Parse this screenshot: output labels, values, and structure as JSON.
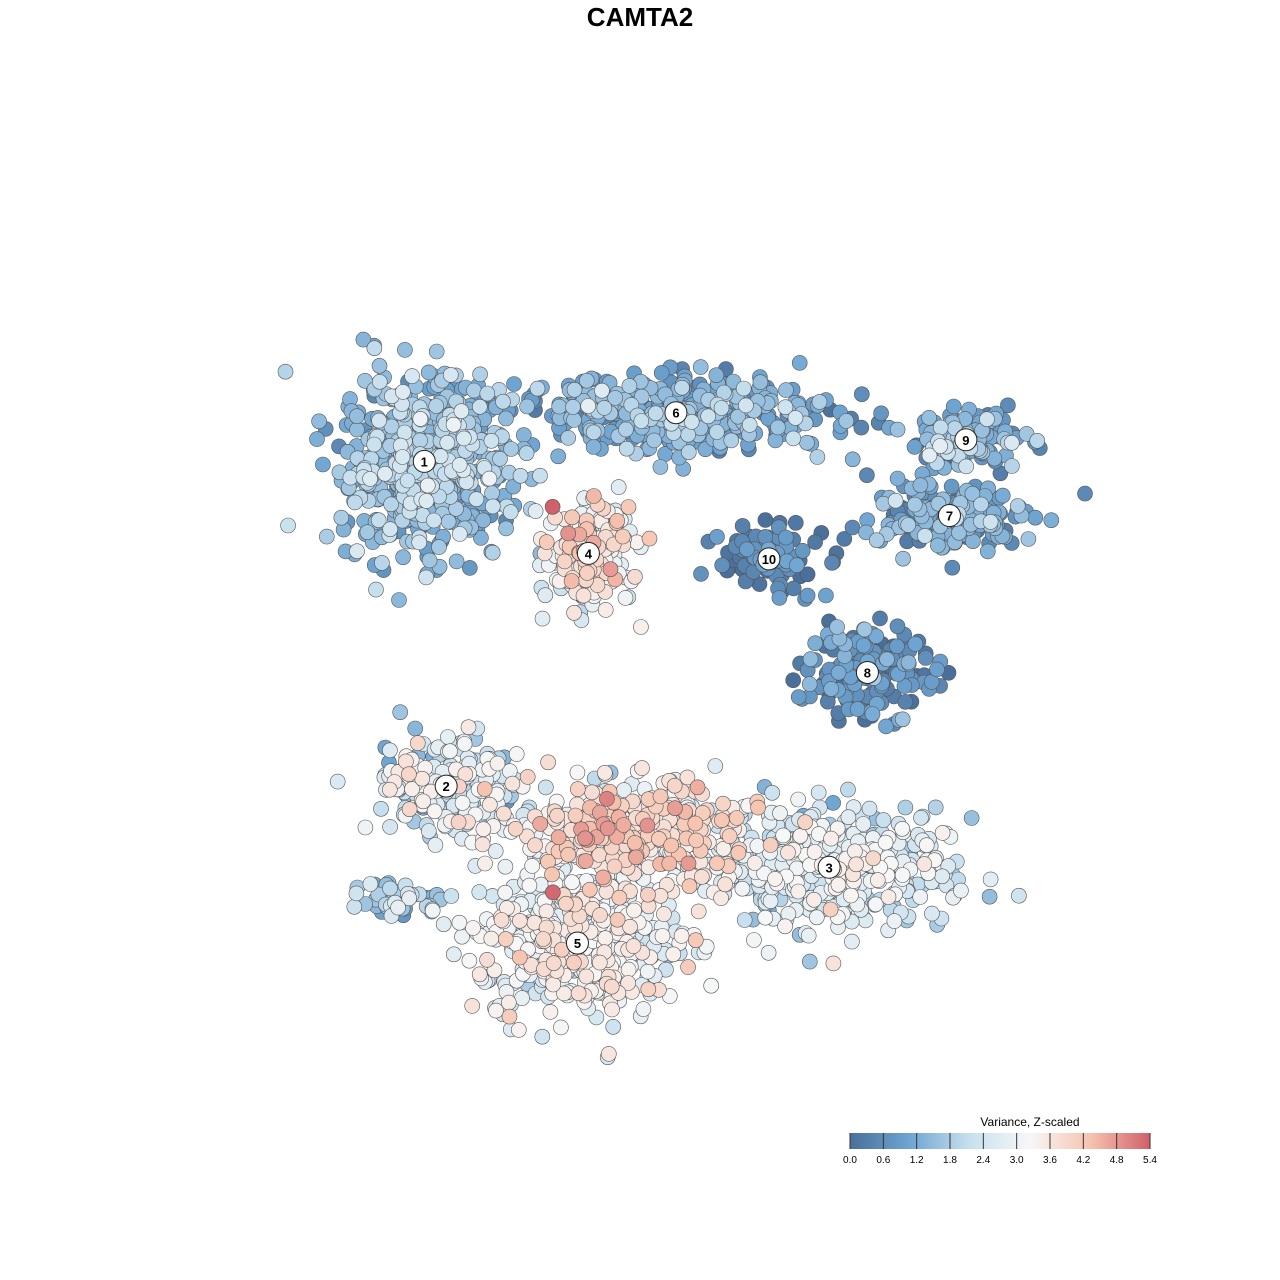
{
  "chart_data": {
    "type": "scatter",
    "title": "CAMTA2",
    "xlabel": "",
    "ylabel": "",
    "grid": false,
    "legend_placement": "bottom-right",
    "colorbar": {
      "title": "Variance, Z-scaled",
      "range": [
        0,
        5.4
      ],
      "ticks": [
        "0.0",
        "0.6",
        "1.2",
        "1.8",
        "2.4",
        "3.0",
        "3.6",
        "4.2",
        "4.8",
        "5.4"
      ],
      "stops": [
        "#4a6f9a",
        "#6fa5d2",
        "#c8e0ee",
        "#f7f7f7",
        "#f6c4b0",
        "#d0606a"
      ]
    },
    "clusters": [
      {
        "label": "1",
        "x": -4.4,
        "y": 3.3,
        "spread_x": 1.0,
        "spread_y": 1.05,
        "mean_value": 1.5,
        "sd_value": 0.5,
        "count": 650
      },
      {
        "label": "6",
        "x": 0.2,
        "y": 4.2,
        "spread_x": 1.9,
        "spread_y": 0.45,
        "mean_value": 1.2,
        "sd_value": 0.45,
        "count": 420
      },
      {
        "label": "9",
        "x": 5.5,
        "y": 3.7,
        "spread_x": 0.7,
        "spread_y": 0.35,
        "mean_value": 1.3,
        "sd_value": 0.6,
        "count": 120
      },
      {
        "label": "7",
        "x": 5.2,
        "y": 2.3,
        "spread_x": 1.0,
        "spread_y": 0.45,
        "mean_value": 1.0,
        "sd_value": 0.5,
        "count": 190
      },
      {
        "label": "4",
        "x": -1.4,
        "y": 1.6,
        "spread_x": 0.5,
        "spread_y": 0.6,
        "mean_value": 3.2,
        "sd_value": 0.6,
        "count": 240
      },
      {
        "label": "10",
        "x": 1.9,
        "y": 1.5,
        "spread_x": 0.6,
        "spread_y": 0.4,
        "mean_value": 0.4,
        "sd_value": 0.4,
        "count": 110
      },
      {
        "label": "8",
        "x": 3.7,
        "y": -0.6,
        "spread_x": 0.8,
        "spread_y": 0.55,
        "mean_value": 0.6,
        "sd_value": 0.45,
        "count": 170
      },
      {
        "label": "2",
        "x": -4.0,
        "y": -2.7,
        "spread_x": 0.9,
        "spread_y": 0.6,
        "mean_value": 2.6,
        "sd_value": 0.7,
        "count": 230
      },
      {
        "label": "3",
        "x": 3.0,
        "y": -4.2,
        "spread_x": 1.4,
        "spread_y": 0.7,
        "mean_value": 2.5,
        "sd_value": 0.55,
        "count": 520
      },
      {
        "label": "5",
        "x": -1.6,
        "y": -5.6,
        "spread_x": 1.2,
        "spread_y": 0.9,
        "mean_value": 3.0,
        "sd_value": 0.5,
        "count": 520
      },
      {
        "label": "",
        "x": -0.6,
        "y": -3.6,
        "spread_x": 1.3,
        "spread_y": 0.6,
        "mean_value": 3.4,
        "sd_value": 0.6,
        "count": 450
      },
      {
        "label": "",
        "x": -4.8,
        "y": -4.8,
        "spread_x": 0.5,
        "spread_y": 0.25,
        "mean_value": 1.8,
        "sd_value": 0.6,
        "count": 45
      }
    ],
    "xlim": [
      -8.5,
      8.5
    ],
    "ylim": [
      -8.5,
      8.5
    ]
  }
}
